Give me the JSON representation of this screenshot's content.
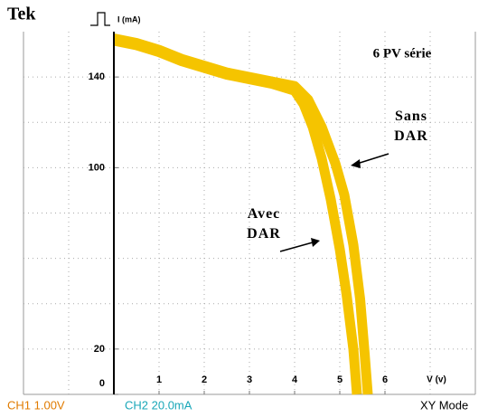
{
  "header": {
    "brand": "Tek"
  },
  "chart_data": {
    "type": "line",
    "title": "6 PV série",
    "y_label": "I (mA)",
    "x_label": "V (v)",
    "xlim": [
      -2,
      8
    ],
    "ylim": [
      0,
      160
    ],
    "xticks": [
      1,
      2,
      3,
      4,
      5,
      6
    ],
    "yticks": [
      0,
      20,
      100,
      140
    ],
    "series": [
      {
        "name": "Sans DAR",
        "color": "#f5c400",
        "x": [
          0,
          0.5,
          1,
          1.5,
          2,
          2.5,
          3,
          3.5,
          4,
          4.3,
          4.6,
          4.9,
          5.1,
          5.3,
          5.45,
          5.55,
          5.62
        ],
        "values": [
          157,
          155,
          152,
          148,
          145,
          142,
          140,
          138,
          136,
          130,
          118,
          102,
          88,
          66,
          42,
          18,
          0
        ]
      },
      {
        "name": "Avec DAR",
        "color": "#f5c400",
        "x": [
          0,
          0.5,
          1,
          1.5,
          2,
          2.5,
          3,
          3.5,
          4,
          4.2,
          4.4,
          4.6,
          4.8,
          5.0,
          5.15,
          5.3,
          5.38
        ],
        "values": [
          156,
          154,
          151,
          147,
          144,
          141,
          139,
          137,
          134,
          128,
          118,
          104,
          86,
          64,
          44,
          20,
          0
        ]
      }
    ]
  },
  "status_bar": {
    "ch1": "CH1  1.00V",
    "ch2": "CH2  20.0mA",
    "mode": "XY Mode"
  }
}
